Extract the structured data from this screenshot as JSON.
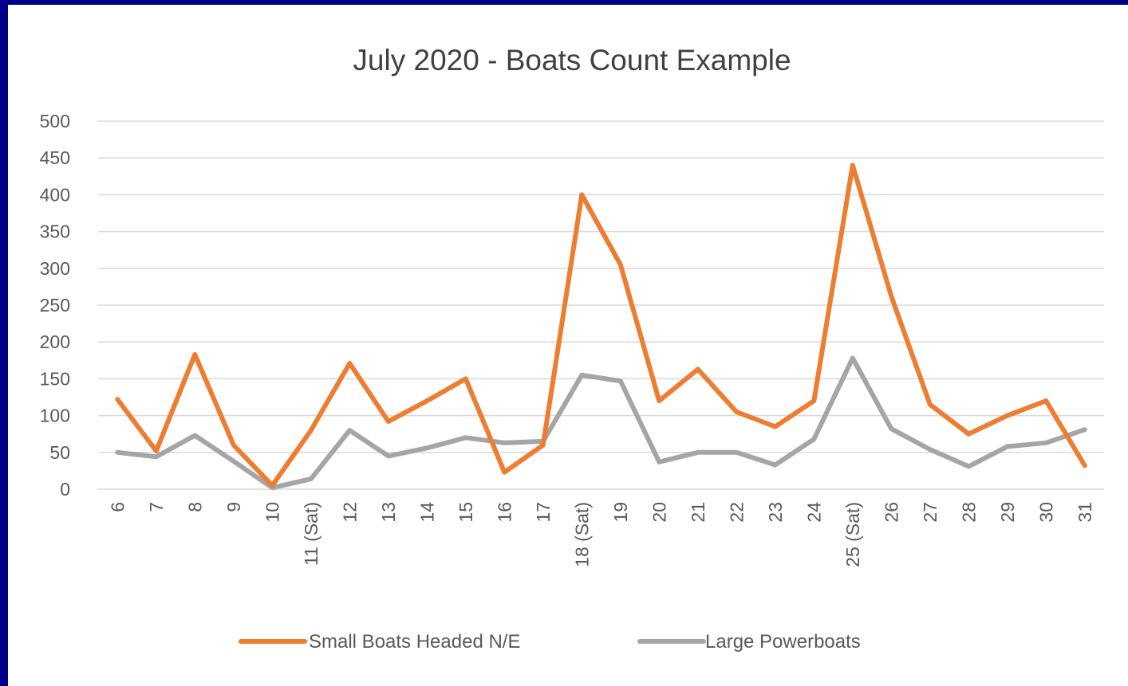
{
  "chart_data": {
    "type": "line",
    "title": "July 2020 - Boats Count Example",
    "xlabel": "",
    "ylabel": "",
    "ylim": [
      0,
      500
    ],
    "yticks": [
      "0",
      "50",
      "100",
      "150",
      "200",
      "250",
      "300",
      "350",
      "400",
      "450",
      "500"
    ],
    "grid": true,
    "legend_position": "bottom",
    "categories": [
      "6",
      "7",
      "8",
      "9",
      "10",
      "11 (Sat)",
      "12",
      "13",
      "14",
      "15",
      "16",
      "17",
      "18 (Sat)",
      "19",
      "20",
      "21",
      "22",
      "23",
      "24",
      "25 (Sat)",
      "26",
      "27",
      "28",
      "29",
      "30",
      "31"
    ],
    "series": [
      {
        "name": "Small Boats Headed N/E",
        "color": "#ed7d31",
        "values": [
          122,
          52,
          183,
          60,
          5,
          80,
          171,
          92,
          120,
          150,
          23,
          60,
          400,
          305,
          120,
          163,
          105,
          85,
          120,
          440,
          262,
          115,
          75,
          100,
          120,
          32
        ]
      },
      {
        "name": "Large Powerboats",
        "color": "#a5a5a5",
        "values": [
          50,
          44,
          73,
          38,
          2,
          14,
          80,
          45,
          56,
          70,
          63,
          65,
          155,
          147,
          37,
          50,
          50,
          33,
          68,
          178,
          82,
          54,
          31,
          58,
          63,
          81
        ]
      }
    ]
  }
}
